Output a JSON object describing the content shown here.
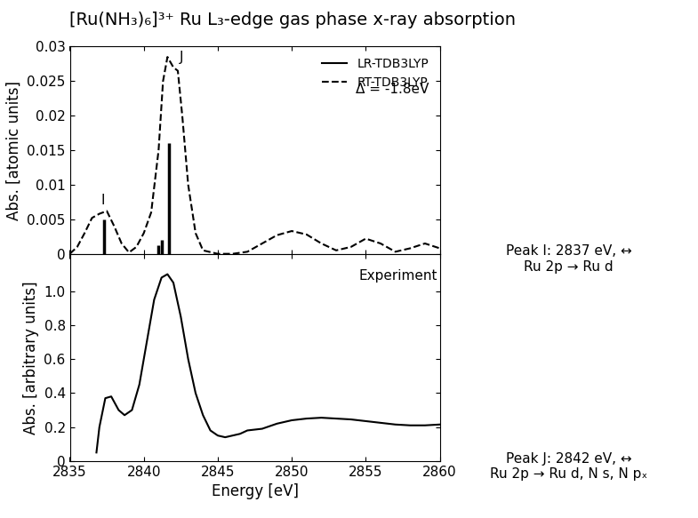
{
  "title": "[Ru(NH₃)₆]³⁺ Ru L₃-edge gas phase x-ray absorption",
  "notes": [
    "Peak I: 2837 eV, ↔\nRu 2p → Ru d",
    "Peak J: 2842 eV, ↔\nRu 2p → Ru d, N s, N pₓ"
  ],
  "chart_data": [
    {
      "type": "line",
      "y_label": "Abs. [atomic units]",
      "xlim": [
        2835,
        2860
      ],
      "xticks": [
        2835,
        2840,
        2845,
        2850,
        2855,
        2860
      ],
      "ylim": [
        0,
        0.03
      ],
      "yticks": [
        0,
        0.005,
        0.01,
        0.015,
        0.02,
        0.025,
        0.03
      ],
      "tick_labels": "y",
      "legend": "upper right",
      "series": [
        {
          "name": "LR-TDB3LYP",
          "type": "stem",
          "color": "#000000",
          "line_style": "solid",
          "x": [
            2837.3,
            2841.0,
            2841.2,
            2841.7
          ],
          "values": [
            0.005,
            0.0012,
            0.002,
            0.016
          ]
        },
        {
          "name": "RT-TDB3LYP",
          "type": "line",
          "color": "#000000",
          "line_style": "dashed",
          "x": [
            2835,
            2835.5,
            2836,
            2836.5,
            2837,
            2837.5,
            2838,
            2838.5,
            2839,
            2839.5,
            2840,
            2840.5,
            2841,
            2841.3,
            2841.6,
            2842,
            2842.3,
            2842.6,
            2843,
            2843.5,
            2844,
            2845,
            2846,
            2847,
            2848,
            2849,
            2850,
            2851,
            2852,
            2853,
            2854,
            2855,
            2856,
            2857,
            2858,
            2859,
            2860
          ],
          "values": [
            0.0,
            0.001,
            0.003,
            0.0052,
            0.0058,
            0.0062,
            0.004,
            0.0015,
            0.0002,
            0.001,
            0.003,
            0.006,
            0.015,
            0.025,
            0.0285,
            0.027,
            0.0265,
            0.02,
            0.01,
            0.003,
            0.0005,
            0.0,
            0.0,
            0.0003,
            0.0015,
            0.0027,
            0.0033,
            0.0028,
            0.0015,
            0.0005,
            0.001,
            0.0022,
            0.0015,
            0.0003,
            0.0008,
            0.0015,
            0.0008
          ]
        }
      ],
      "annotations": [
        {
          "text": "I",
          "x": 2837.1,
          "y": 0.0068
        },
        {
          "text": "J",
          "x": 2842.4,
          "y": 0.0275
        },
        {
          "text": "Δ = -1.8eV",
          "x": 2854.3,
          "y": 0.0228
        }
      ]
    },
    {
      "type": "line",
      "x_label": "Energy [eV]",
      "y_label": "Abs. [arbitrary units]",
      "xlim": [
        2835,
        2860
      ],
      "xticks": [
        2835,
        2840,
        2845,
        2850,
        2855,
        2860
      ],
      "ylim": [
        0,
        1.22
      ],
      "yticks": [
        0,
        0.2,
        0.4,
        0.6,
        0.8,
        1.0
      ],
      "series": [
        {
          "type": "line",
          "color": "#000000",
          "line_style": "solid",
          "x": [
            2836.8,
            2837,
            2837.4,
            2837.8,
            2838.3,
            2838.7,
            2839.2,
            2839.7,
            2840.2,
            2840.7,
            2841.2,
            2841.6,
            2842,
            2842.5,
            2843,
            2843.5,
            2844,
            2844.5,
            2845,
            2845.5,
            2846,
            2846.5,
            2847,
            2848,
            2849,
            2850,
            2851,
            2852,
            2853,
            2854,
            2855,
            2856,
            2857,
            2858,
            2859,
            2860
          ],
          "values": [
            0.05,
            0.2,
            0.37,
            0.38,
            0.3,
            0.27,
            0.3,
            0.45,
            0.7,
            0.95,
            1.08,
            1.1,
            1.05,
            0.85,
            0.6,
            0.4,
            0.27,
            0.18,
            0.15,
            0.14,
            0.15,
            0.16,
            0.18,
            0.19,
            0.22,
            0.24,
            0.25,
            0.255,
            0.25,
            0.245,
            0.235,
            0.225,
            0.215,
            0.21,
            0.21,
            0.215
          ]
        }
      ],
      "annotations": [
        {
          "text": "Experiment",
          "x": 2854.5,
          "y": 1.05
        }
      ]
    }
  ]
}
